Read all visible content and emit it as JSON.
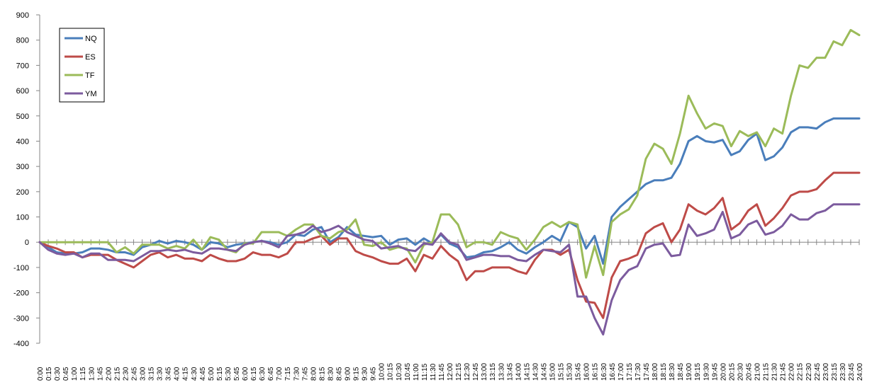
{
  "chart_data": {
    "type": "line",
    "title": "",
    "xlabel": "",
    "ylabel": "",
    "ylim": [
      -400,
      900
    ],
    "ytick_step": 100,
    "grid": false,
    "legend_position": "top-left",
    "x": [
      "0:00",
      "0:15",
      "0:30",
      "0:45",
      "1:00",
      "1:15",
      "1:30",
      "1:45",
      "2:00",
      "2:15",
      "2:30",
      "2:45",
      "3:00",
      "3:15",
      "3:30",
      "3:45",
      "4:00",
      "4:15",
      "4:30",
      "4:45",
      "5:00",
      "5:15",
      "5:30",
      "5:45",
      "6:00",
      "6:15",
      "6:30",
      "6:45",
      "7:00",
      "7:15",
      "7:30",
      "7:45",
      "8:00",
      "8:15",
      "8:30",
      "8:45",
      "9:00",
      "9:15",
      "9:30",
      "9:45",
      "10:00",
      "10:15",
      "10:30",
      "10:45",
      "11:00",
      "11:15",
      "11:30",
      "11:45",
      "12:00",
      "12:15",
      "12:30",
      "12:45",
      "13:00",
      "13:15",
      "13:30",
      "13:45",
      "14:00",
      "14:15",
      "14:30",
      "14:45",
      "15:00",
      "15:15",
      "15:30",
      "15:45",
      "16:00",
      "16:15",
      "16:30",
      "16:45",
      "17:00",
      "17:15",
      "17:30",
      "17:45",
      "18:00",
      "18:15",
      "18:30",
      "18:45",
      "19:00",
      "19:15",
      "19:30",
      "19:45",
      "20:00",
      "20:15",
      "20:30",
      "20:45",
      "21:00",
      "21:15",
      "21:30",
      "21:45",
      "22:00",
      "22:15",
      "22:30",
      "22:45",
      "23:00",
      "23:15",
      "23:30",
      "23:45",
      "24:00"
    ],
    "series": [
      {
        "name": "NQ",
        "color": "#4a7ebb",
        "values": [
          0,
          -20,
          -40,
          -45,
          -45,
          -40,
          -25,
          -25,
          -30,
          -40,
          -40,
          -50,
          -20,
          -10,
          5,
          -5,
          5,
          0,
          -10,
          -30,
          0,
          -5,
          -20,
          -10,
          -5,
          0,
          5,
          0,
          -10,
          0,
          30,
          25,
          50,
          60,
          0,
          20,
          60,
          30,
          25,
          20,
          25,
          -10,
          10,
          15,
          -10,
          15,
          -5,
          30,
          -5,
          -20,
          -60,
          -55,
          -40,
          -35,
          -20,
          0,
          -30,
          -45,
          -20,
          0,
          25,
          5,
          80,
          60,
          -25,
          25,
          -85,
          100,
          140,
          170,
          200,
          230,
          245,
          245,
          255,
          310,
          400,
          420,
          400,
          395,
          405,
          345,
          360,
          405,
          430,
          325,
          340,
          375,
          435,
          455,
          455,
          450,
          475,
          490,
          490,
          490,
          490
        ]
      },
      {
        "name": "ES",
        "color": "#be4b48",
        "values": [
          0,
          -15,
          -25,
          -40,
          -40,
          -60,
          -50,
          -50,
          -50,
          -70,
          -85,
          -100,
          -75,
          -50,
          -40,
          -60,
          -50,
          -65,
          -65,
          -75,
          -50,
          -65,
          -75,
          -75,
          -65,
          -40,
          -50,
          -50,
          -60,
          -45,
          0,
          0,
          15,
          25,
          -10,
          15,
          15,
          -35,
          -50,
          -60,
          -75,
          -85,
          -85,
          -65,
          -115,
          -50,
          -65,
          -15,
          -50,
          -75,
          -150,
          -115,
          -115,
          -100,
          -100,
          -100,
          -115,
          -125,
          -70,
          -30,
          -30,
          -50,
          -30,
          -150,
          -235,
          -240,
          -300,
          -140,
          -75,
          -65,
          -50,
          35,
          60,
          75,
          0,
          50,
          150,
          125,
          110,
          135,
          175,
          50,
          75,
          125,
          150,
          65,
          95,
          135,
          185,
          200,
          200,
          210,
          245,
          275,
          275,
          275,
          275
        ]
      },
      {
        "name": "TF",
        "color": "#9bbb59",
        "values": [
          0,
          0,
          0,
          0,
          0,
          0,
          0,
          0,
          0,
          -40,
          -20,
          -45,
          -10,
          -10,
          -10,
          -25,
          -15,
          -25,
          10,
          -30,
          20,
          10,
          -30,
          -40,
          -5,
          -5,
          40,
          40,
          40,
          25,
          50,
          70,
          70,
          25,
          15,
          40,
          50,
          90,
          -10,
          -15,
          0,
          -30,
          -20,
          -25,
          -80,
          -10,
          0,
          110,
          110,
          70,
          -20,
          0,
          0,
          -10,
          40,
          25,
          15,
          -30,
          10,
          60,
          80,
          60,
          80,
          70,
          -140,
          -15,
          -130,
          80,
          110,
          130,
          185,
          330,
          390,
          370,
          310,
          430,
          580,
          510,
          450,
          470,
          460,
          380,
          440,
          420,
          435,
          380,
          450,
          430,
          580,
          700,
          690,
          730,
          730,
          795,
          780,
          840,
          820
        ]
      },
      {
        "name": "YM",
        "color": "#7c5b9e",
        "values": [
          0,
          -30,
          -45,
          -50,
          -45,
          -60,
          -45,
          -45,
          -70,
          -70,
          -70,
          -75,
          -55,
          -35,
          -35,
          -30,
          -35,
          -30,
          -40,
          -45,
          -25,
          -25,
          -30,
          -35,
          -10,
          0,
          5,
          -5,
          -20,
          25,
          30,
          40,
          65,
          40,
          50,
          65,
          40,
          25,
          10,
          5,
          -25,
          -20,
          -15,
          -30,
          -35,
          -5,
          -10,
          35,
          0,
          -10,
          -70,
          -60,
          -50,
          -50,
          -55,
          -55,
          -70,
          -75,
          -50,
          -30,
          -35,
          -40,
          -10,
          -215,
          -215,
          -300,
          -365,
          -230,
          -150,
          -110,
          -95,
          -25,
          -10,
          -5,
          -55,
          -50,
          70,
          25,
          35,
          50,
          120,
          15,
          30,
          70,
          85,
          30,
          40,
          65,
          110,
          90,
          90,
          115,
          125,
          150,
          150,
          150,
          150
        ]
      }
    ]
  }
}
